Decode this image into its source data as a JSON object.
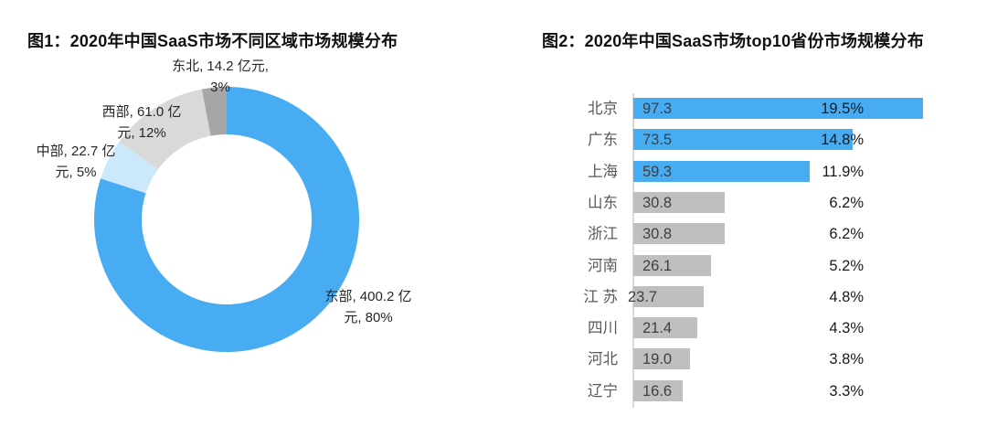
{
  "chart_data": [
    {
      "id": "figure1",
      "type": "pie",
      "subtype": "donut",
      "title": "图1：2020年中国SaaS市场不同区域市场规模分布",
      "unit": "亿元",
      "direction": "clockwise",
      "start_at": "top",
      "slices": [
        {
          "name": "东部",
          "value": 400.2,
          "pct": 80,
          "color": "#47ACF2",
          "label_lines": [
            "东部, 400.2 亿",
            "元, 80%"
          ]
        },
        {
          "name": "中部",
          "value": 22.7,
          "pct": 5,
          "color": "#CBE9FB",
          "label_lines": [
            "中部, 22.7 亿",
            "元, 5%"
          ]
        },
        {
          "name": "西部",
          "value": 61.0,
          "pct": 12,
          "color": "#D9D9D9",
          "label_lines": [
            "西部, 61.0 亿",
            "元, 12%"
          ]
        },
        {
          "name": "东北",
          "value": 14.2,
          "pct": 3,
          "color": "#A6A6A6",
          "label_lines": [
            "东北, 14.2 亿元,",
            "3%"
          ]
        }
      ]
    },
    {
      "id": "figure2",
      "type": "bar",
      "orientation": "horizontal",
      "title": "图2：2020年中国SaaS市场top10省份市场规模分布",
      "unit": "亿元",
      "highlight_color": "#47ACF2",
      "default_color": "#BFBFBF",
      "rows": [
        {
          "province": "北京",
          "value": 97.3,
          "value_label": "97.3",
          "pct": "19.5%",
          "color": "#47ACF2"
        },
        {
          "province": "广东",
          "value": 73.5,
          "value_label": "73.5",
          "pct": "14.8%",
          "color": "#47ACF2"
        },
        {
          "province": "上海",
          "value": 59.3,
          "value_label": "59.3",
          "pct": "11.9%",
          "color": "#47ACF2"
        },
        {
          "province": "山东",
          "value": 30.8,
          "value_label": "30.8",
          "pct": "6.2%",
          "color": "#BFBFBF"
        },
        {
          "province": "浙江",
          "value": 30.8,
          "value_label": "30.8",
          "pct": "6.2%",
          "color": "#BFBFBF"
        },
        {
          "province": "河南",
          "value": 26.1,
          "value_label": "26.1",
          "pct": "5.2%",
          "color": "#BFBFBF"
        },
        {
          "province": "江 苏",
          "value": 23.7,
          "value_label": "23.7",
          "pct": "4.8%",
          "color": "#BFBFBF",
          "value_label_offset": -6
        },
        {
          "province": "四川",
          "value": 21.4,
          "value_label": "21.4",
          "pct": "4.3%",
          "color": "#BFBFBF"
        },
        {
          "province": "河北",
          "value": 19.0,
          "value_label": "19.0",
          "pct": "3.8%",
          "color": "#BFBFBF"
        },
        {
          "province": "辽宁",
          "value": 16.6,
          "value_label": "16.6",
          "pct": "3.3%",
          "color": "#BFBFBF"
        }
      ]
    }
  ]
}
